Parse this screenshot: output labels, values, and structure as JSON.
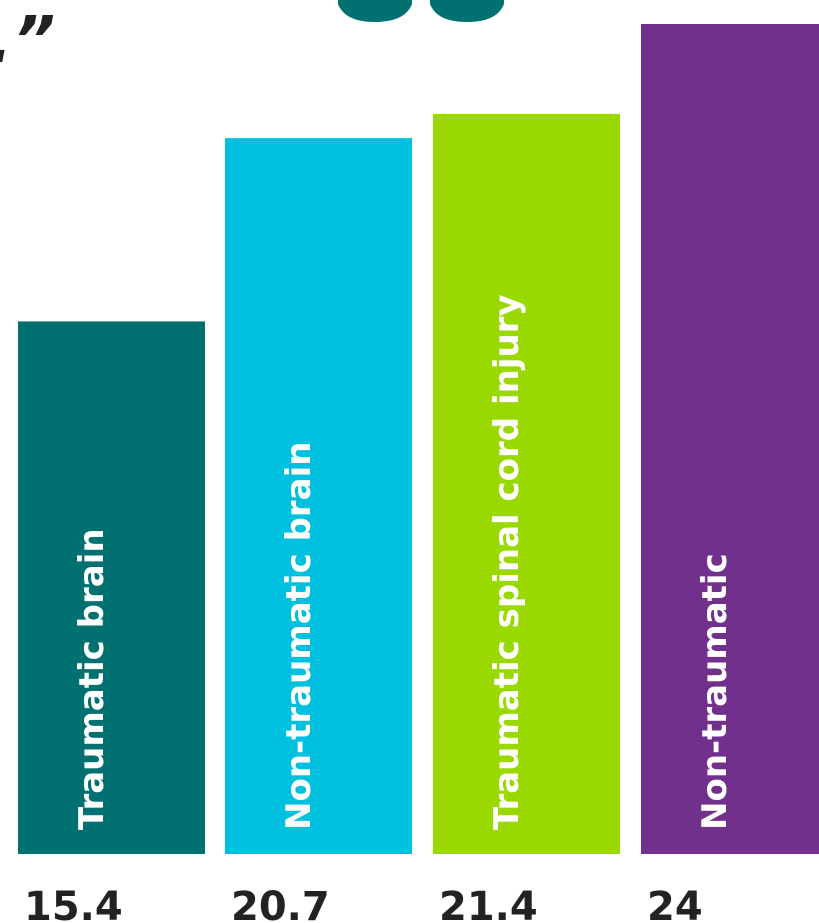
{
  "header": {
    "quote_fragment": "."
  },
  "colors": {
    "teal_dark": "#007070",
    "cyan": "#00C0E0",
    "lime": "#99D800",
    "purple": "#70308C",
    "text_dark": "#222222",
    "label_white": "#ffffff"
  },
  "chart_data": {
    "type": "bar",
    "categories": [
      "Traumatic brain",
      "Non-traumatic brain",
      "Traumatic spinal cord injury",
      "Non-traumatic"
    ],
    "values": [
      15.4,
      20.7,
      21.4,
      24
    ],
    "value_labels": [
      "15.4",
      "20.7",
      "21.4",
      "24"
    ],
    "bar_colors": [
      "#007070",
      "#00C0E0",
      "#99D800",
      "#70308C"
    ],
    "title": "",
    "xlabel": "",
    "ylabel": "",
    "ylim": [
      0,
      24
    ],
    "grid": false,
    "legend": "none"
  }
}
